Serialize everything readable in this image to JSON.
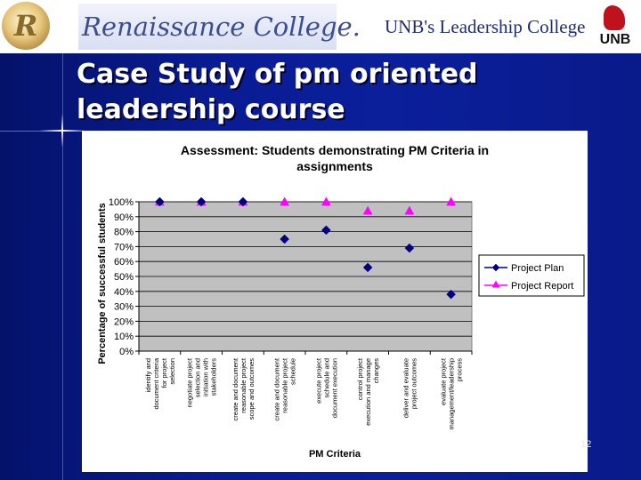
{
  "slide": {
    "title": "Case Study of pm oriented leadership course",
    "number": "12"
  },
  "header": {
    "renaissance_logo_letter": "R",
    "renaissance_name": "Renaissance College.",
    "unb_tagline": "UNB's Leadership College",
    "unb_logo_text": "UNB"
  },
  "colors": {
    "background": "#0b1f9b",
    "plot_area": "#c0c0c0",
    "project_plan": "#000080",
    "project_report": "#ff00ff"
  },
  "chart_data": {
    "type": "scatter",
    "title": "Assessment: Students demonstrating PM Criteria in assignments",
    "xlabel": "PM Criteria",
    "ylabel": "Percentage of successful students",
    "ylim": [
      0,
      100
    ],
    "yticks": [
      "0%",
      "10%",
      "20%",
      "30%",
      "40%",
      "50%",
      "60%",
      "70%",
      "80%",
      "90%",
      "100%"
    ],
    "grid": true,
    "legend_position": "right",
    "categories": [
      "identify and document criteria for project selection",
      "negotiate project selection and initiation with stakeholders",
      "create and document reasonable project scope and outcomes",
      "create and document reasonable project schedule",
      "execute project schedule and document execution",
      "control project execution and manage changes",
      "deliver and evaluate project outcomes",
      "evaluate project management/leadership process"
    ],
    "series": [
      {
        "name": "Project Plan",
        "marker": "diamond",
        "values": [
          100,
          100,
          100,
          75,
          81,
          56,
          69,
          38
        ]
      },
      {
        "name": "Project Report",
        "marker": "triangle",
        "values": [
          100,
          100,
          100,
          100,
          100,
          94,
          94,
          100
        ]
      }
    ]
  }
}
